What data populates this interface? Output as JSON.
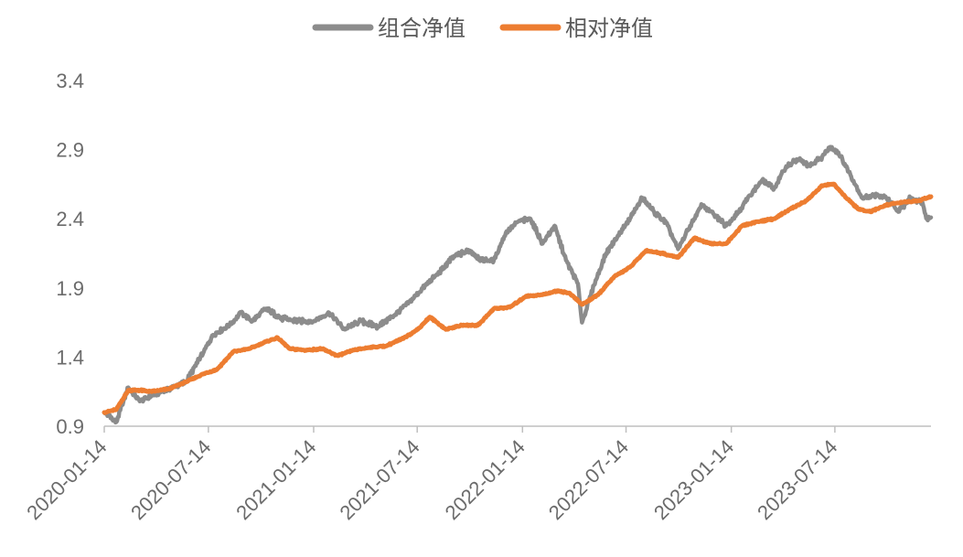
{
  "chart_data": {
    "type": "line",
    "title": "",
    "xlabel": "",
    "ylabel": "",
    "ylim": [
      0.9,
      3.4
    ],
    "yticks": [
      "0.9",
      "1.4",
      "1.9",
      "2.4",
      "2.9",
      "3.4"
    ],
    "xlim": [
      "2020-01-14",
      "2023-12-29"
    ],
    "xticks": [
      "2020-01-14",
      "2020-07-14",
      "2021-01-14",
      "2021-07-14",
      "2022-01-14",
      "2022-07-14",
      "2023-01-14",
      "2023-07-14"
    ],
    "legend_position": "top",
    "grid": false,
    "series": [
      {
        "name": "组合净值",
        "color": "#8c8c8c",
        "points": [
          [
            "2020-01-14",
            1.0
          ],
          [
            "2020-02-04",
            0.93
          ],
          [
            "2020-02-25",
            1.18
          ],
          [
            "2020-03-16",
            1.08
          ],
          [
            "2020-04-06",
            1.12
          ],
          [
            "2020-05-06",
            1.17
          ],
          [
            "2020-06-05",
            1.22
          ],
          [
            "2020-07-06",
            1.44
          ],
          [
            "2020-07-22",
            1.56
          ],
          [
            "2020-08-20",
            1.63
          ],
          [
            "2020-09-09",
            1.72
          ],
          [
            "2020-09-29",
            1.66
          ],
          [
            "2020-10-22",
            1.75
          ],
          [
            "2020-11-19",
            1.68
          ],
          [
            "2020-12-17",
            1.66
          ],
          [
            "2021-01-14",
            1.66
          ],
          [
            "2021-02-10",
            1.72
          ],
          [
            "2021-03-09",
            1.6
          ],
          [
            "2021-04-06",
            1.66
          ],
          [
            "2021-05-06",
            1.62
          ],
          [
            "2021-06-03",
            1.7
          ],
          [
            "2021-07-01",
            1.8
          ],
          [
            "2021-07-29",
            1.92
          ],
          [
            "2021-08-26",
            2.03
          ],
          [
            "2021-09-16",
            2.13
          ],
          [
            "2021-10-14",
            2.17
          ],
          [
            "2021-11-04",
            2.1
          ],
          [
            "2021-11-25",
            2.1
          ],
          [
            "2021-12-16",
            2.3
          ],
          [
            "2022-01-07",
            2.38
          ],
          [
            "2022-01-28",
            2.4
          ],
          [
            "2022-02-18",
            2.22
          ],
          [
            "2022-03-11",
            2.35
          ],
          [
            "2022-03-31",
            2.1
          ],
          [
            "2022-04-21",
            1.93
          ],
          [
            "2022-04-28",
            1.65
          ],
          [
            "2022-05-19",
            1.92
          ],
          [
            "2022-06-09",
            2.15
          ],
          [
            "2022-06-30",
            2.28
          ],
          [
            "2022-07-21",
            2.4
          ],
          [
            "2022-08-11",
            2.55
          ],
          [
            "2022-09-01",
            2.45
          ],
          [
            "2022-09-22",
            2.37
          ],
          [
            "2022-10-13",
            2.18
          ],
          [
            "2022-11-03",
            2.35
          ],
          [
            "2022-11-24",
            2.5
          ],
          [
            "2022-12-15",
            2.43
          ],
          [
            "2023-01-05",
            2.35
          ],
          [
            "2023-01-26",
            2.45
          ],
          [
            "2023-02-16",
            2.57
          ],
          [
            "2023-03-09",
            2.68
          ],
          [
            "2023-03-30",
            2.62
          ],
          [
            "2023-04-20",
            2.78
          ],
          [
            "2023-05-11",
            2.83
          ],
          [
            "2023-06-01",
            2.78
          ],
          [
            "2023-06-22",
            2.85
          ],
          [
            "2023-07-06",
            2.92
          ],
          [
            "2023-07-20",
            2.88
          ],
          [
            "2023-08-10",
            2.72
          ],
          [
            "2023-08-31",
            2.55
          ],
          [
            "2023-09-21",
            2.57
          ],
          [
            "2023-10-12",
            2.55
          ],
          [
            "2023-11-02",
            2.45
          ],
          [
            "2023-11-23",
            2.55
          ],
          [
            "2023-12-14",
            2.52
          ],
          [
            "2023-12-22",
            2.4
          ],
          [
            "2023-12-29",
            2.41
          ]
        ]
      },
      {
        "name": "相对净值",
        "color": "#ed7d31",
        "points": [
          [
            "2020-01-14",
            1.0
          ],
          [
            "2020-02-04",
            1.02
          ],
          [
            "2020-02-25",
            1.16
          ],
          [
            "2020-03-16",
            1.16
          ],
          [
            "2020-04-06",
            1.15
          ],
          [
            "2020-05-06",
            1.17
          ],
          [
            "2020-06-05",
            1.22
          ],
          [
            "2020-07-06",
            1.28
          ],
          [
            "2020-07-29",
            1.31
          ],
          [
            "2020-08-27",
            1.44
          ],
          [
            "2020-09-24",
            1.46
          ],
          [
            "2020-10-22",
            1.51
          ],
          [
            "2020-11-12",
            1.54
          ],
          [
            "2020-12-03",
            1.46
          ],
          [
            "2020-12-31",
            1.45
          ],
          [
            "2021-01-28",
            1.46
          ],
          [
            "2021-02-25",
            1.41
          ],
          [
            "2021-03-25",
            1.45
          ],
          [
            "2021-04-22",
            1.47
          ],
          [
            "2021-05-20",
            1.48
          ],
          [
            "2021-06-17",
            1.53
          ],
          [
            "2021-07-15",
            1.6
          ],
          [
            "2021-08-05",
            1.69
          ],
          [
            "2021-09-02",
            1.6
          ],
          [
            "2021-09-30",
            1.63
          ],
          [
            "2021-10-28",
            1.63
          ],
          [
            "2021-11-25",
            1.75
          ],
          [
            "2021-12-23",
            1.76
          ],
          [
            "2022-01-20",
            1.84
          ],
          [
            "2022-02-17",
            1.85
          ],
          [
            "2022-03-17",
            1.88
          ],
          [
            "2022-04-07",
            1.86
          ],
          [
            "2022-04-28",
            1.78
          ],
          [
            "2022-05-26",
            1.85
          ],
          [
            "2022-06-23",
            1.98
          ],
          [
            "2022-07-21",
            2.05
          ],
          [
            "2022-08-18",
            2.17
          ],
          [
            "2022-09-15",
            2.15
          ],
          [
            "2022-10-13",
            2.12
          ],
          [
            "2022-11-10",
            2.26
          ],
          [
            "2022-12-08",
            2.22
          ],
          [
            "2023-01-05",
            2.22
          ],
          [
            "2023-02-02",
            2.35
          ],
          [
            "2023-03-02",
            2.38
          ],
          [
            "2023-03-30",
            2.4
          ],
          [
            "2023-04-27",
            2.47
          ],
          [
            "2023-05-25",
            2.53
          ],
          [
            "2023-06-22",
            2.64
          ],
          [
            "2023-07-13",
            2.65
          ],
          [
            "2023-08-03",
            2.55
          ],
          [
            "2023-08-24",
            2.47
          ],
          [
            "2023-09-14",
            2.45
          ],
          [
            "2023-10-12",
            2.5
          ],
          [
            "2023-11-09",
            2.52
          ],
          [
            "2023-12-07",
            2.53
          ],
          [
            "2023-12-29",
            2.56
          ]
        ]
      }
    ]
  }
}
